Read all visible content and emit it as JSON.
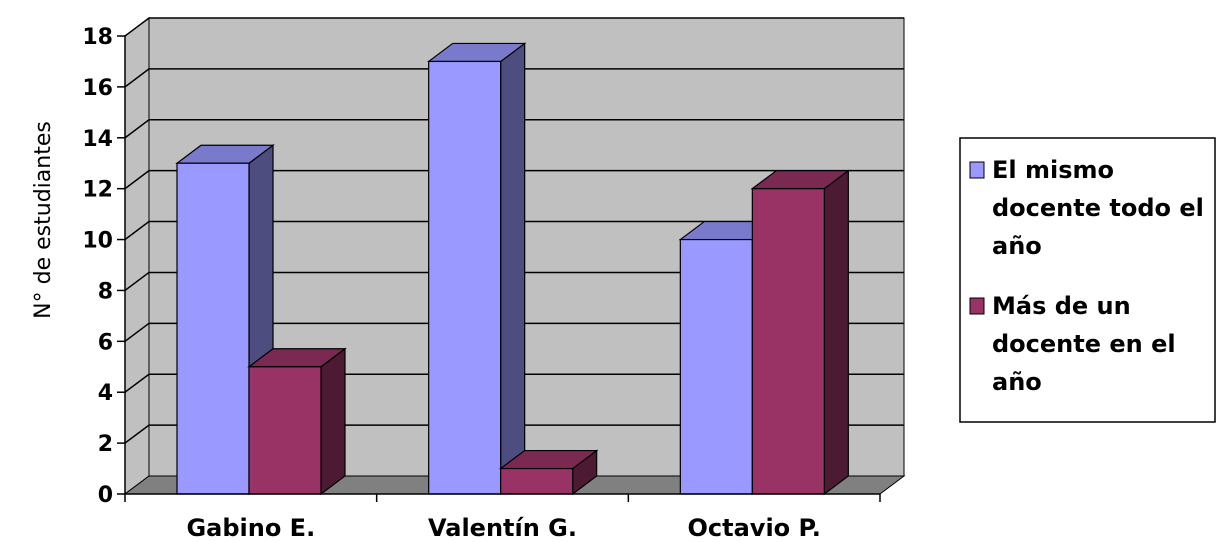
{
  "chart_data": {
    "type": "bar",
    "style": "3d-clustered-column",
    "ylabel": "N° de estudiantes",
    "ylim": [
      0,
      18
    ],
    "yticks": [
      0,
      2,
      4,
      6,
      8,
      10,
      12,
      14,
      16,
      18
    ],
    "grid": true,
    "legend_position": "right",
    "categories": [
      "Gabino E.",
      "Valentín G.",
      "Octavio P."
    ],
    "series": [
      {
        "name": "El mismo docente todo el año",
        "legend_lines": [
          "El mismo",
          "docente todo el",
          "año"
        ],
        "color": "#9999ff",
        "values": [
          13,
          17,
          10
        ]
      },
      {
        "name": "Más de un docente en el año",
        "legend_lines": [
          "Más de un",
          "docente en el",
          "año"
        ],
        "color": "#993366",
        "values": [
          5,
          1,
          12
        ]
      }
    ]
  },
  "colors": {
    "wall": "#c0c0c0",
    "floor": "#808080",
    "grid": "#000000"
  }
}
